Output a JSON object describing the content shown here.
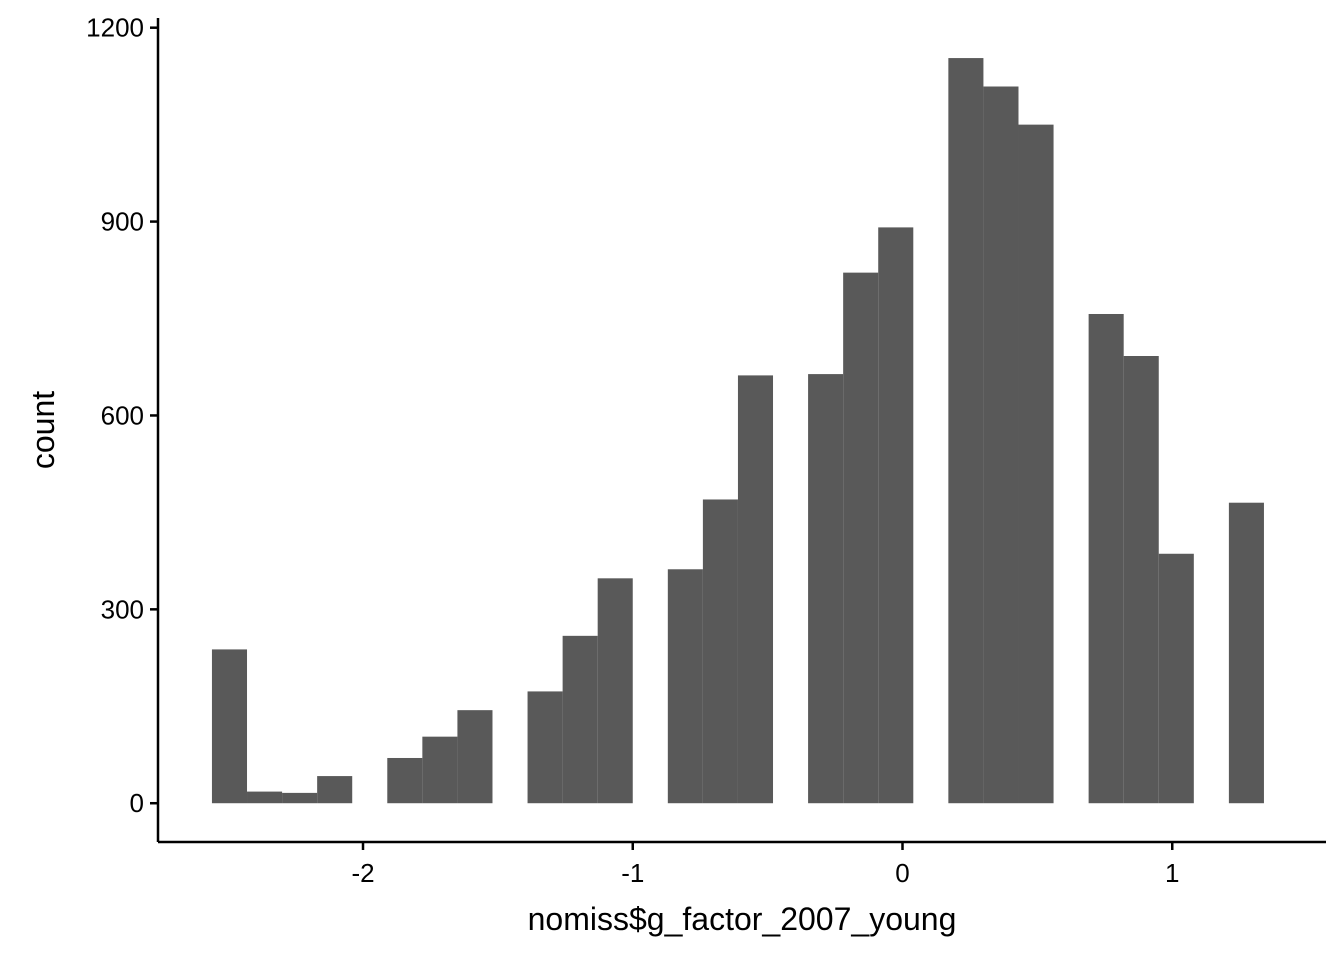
{
  "chart_data": {
    "type": "bar",
    "subtype": "histogram",
    "title": "",
    "xlabel": "nomiss$g_factor_2007_young",
    "ylabel": "count",
    "xlim": [
      -2.76,
      1.57
    ],
    "ylim": [
      -60,
      1215
    ],
    "xticks": [
      -2,
      -1,
      0,
      1
    ],
    "xtick_labels": [
      "-2",
      "-1",
      "0",
      "1"
    ],
    "yticks": [
      0,
      300,
      600,
      900,
      1200
    ],
    "ytick_labels": [
      "0",
      "300",
      "600",
      "900",
      "1200"
    ],
    "grid": false,
    "legend": "none",
    "bar_color": "#595959",
    "bins": [
      {
        "x0": -2.56,
        "x1": -2.43,
        "count": 238
      },
      {
        "x0": -2.43,
        "x1": -2.3,
        "count": 18
      },
      {
        "x0": -2.3,
        "x1": -2.17,
        "count": 16
      },
      {
        "x0": -2.17,
        "x1": -2.04,
        "count": 42
      },
      {
        "x0": -2.04,
        "x1": -1.91,
        "count": 0
      },
      {
        "x0": -1.91,
        "x1": -1.78,
        "count": 70
      },
      {
        "x0": -1.78,
        "x1": -1.65,
        "count": 103
      },
      {
        "x0": -1.65,
        "x1": -1.52,
        "count": 144
      },
      {
        "x0": -1.52,
        "x1": -1.39,
        "count": 0
      },
      {
        "x0": -1.39,
        "x1": -1.26,
        "count": 173
      },
      {
        "x0": -1.26,
        "x1": -1.13,
        "count": 259
      },
      {
        "x0": -1.13,
        "x1": -1.0,
        "count": 348
      },
      {
        "x0": -1.0,
        "x1": -0.87,
        "count": 0
      },
      {
        "x0": -0.87,
        "x1": -0.74,
        "count": 362
      },
      {
        "x0": -0.74,
        "x1": -0.61,
        "count": 470
      },
      {
        "x0": -0.61,
        "x1": -0.48,
        "count": 662
      },
      {
        "x0": -0.48,
        "x1": -0.35,
        "count": 0
      },
      {
        "x0": -0.35,
        "x1": -0.22,
        "count": 664
      },
      {
        "x0": -0.22,
        "x1": -0.09,
        "count": 821
      },
      {
        "x0": -0.09,
        "x1": 0.04,
        "count": 891
      },
      {
        "x0": 0.04,
        "x1": 0.17,
        "count": 0
      },
      {
        "x0": 0.17,
        "x1": 0.3,
        "count": 1153
      },
      {
        "x0": 0.3,
        "x1": 0.43,
        "count": 1109
      },
      {
        "x0": 0.43,
        "x1": 0.56,
        "count": 1050
      },
      {
        "x0": 0.56,
        "x1": 0.69,
        "count": 0
      },
      {
        "x0": 0.69,
        "x1": 0.82,
        "count": 757
      },
      {
        "x0": 0.82,
        "x1": 0.95,
        "count": 692
      },
      {
        "x0": 0.95,
        "x1": 1.08,
        "count": 386
      },
      {
        "x0": 1.08,
        "x1": 1.21,
        "count": 0
      },
      {
        "x0": 1.21,
        "x1": 1.34,
        "count": 465
      }
    ]
  }
}
